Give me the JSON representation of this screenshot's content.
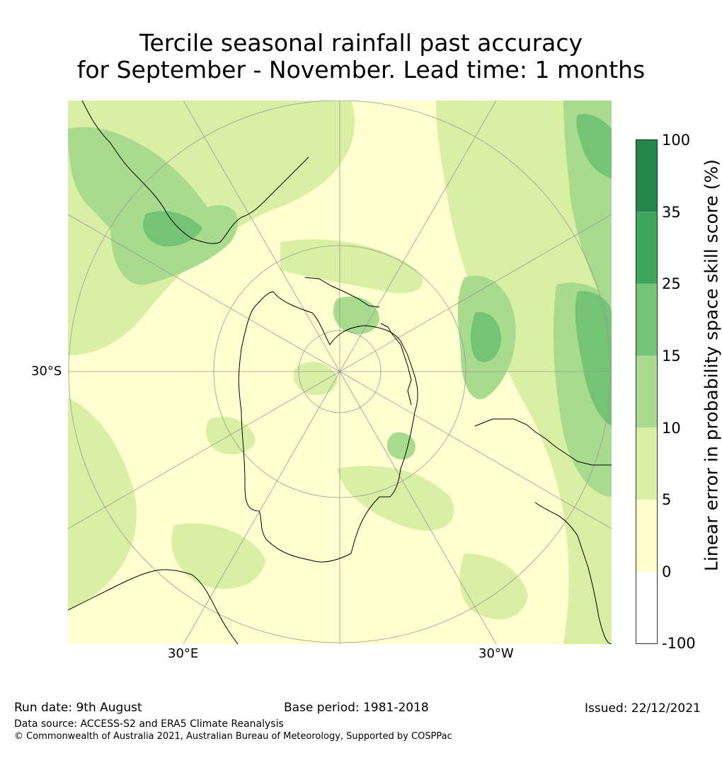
{
  "title": {
    "line1": "Tercile seasonal rainfall past accuracy",
    "line2": "for September - November. Lead time: 1 months"
  },
  "map": {
    "projection": "south polar stereographic",
    "grid_labels": {
      "left": "30°S",
      "bottom_left": "30°E",
      "bottom_right": "30°W"
    },
    "colors": {
      "coast": "#000000",
      "grid": "#999999",
      "background": "#ffffd0"
    }
  },
  "colorbar": {
    "label": "Linear error in probability space skill score (%)",
    "ticks": [
      "100",
      "35",
      "25",
      "15",
      "10",
      "5",
      "0",
      "-100"
    ],
    "bins": [
      {
        "range": "35 to 100",
        "color": "#23874a"
      },
      {
        "range": "25 to 35",
        "color": "#3ea75b"
      },
      {
        "range": "15 to 25",
        "color": "#74c476"
      },
      {
        "range": "10 to 15",
        "color": "#a8db8e"
      },
      {
        "range": "5 to 10",
        "color": "#d9efa3"
      },
      {
        "range": "0 to 5",
        "color": "#ffffcc"
      },
      {
        "range": "-100 to 0",
        "color": "#ffffff"
      }
    ]
  },
  "footer": {
    "run_date": "Run date: 9th August",
    "base_period": "Base period: 1981-2018",
    "issued": "Issued: 22/12/2021",
    "data_source": "Data source: ACCESS-S2 and ERA5 Climate Reanalysis",
    "copyright": "© Commonwealth of Australia 2021, Australian Bureau of Meteorology, Supported by COSPPac"
  }
}
